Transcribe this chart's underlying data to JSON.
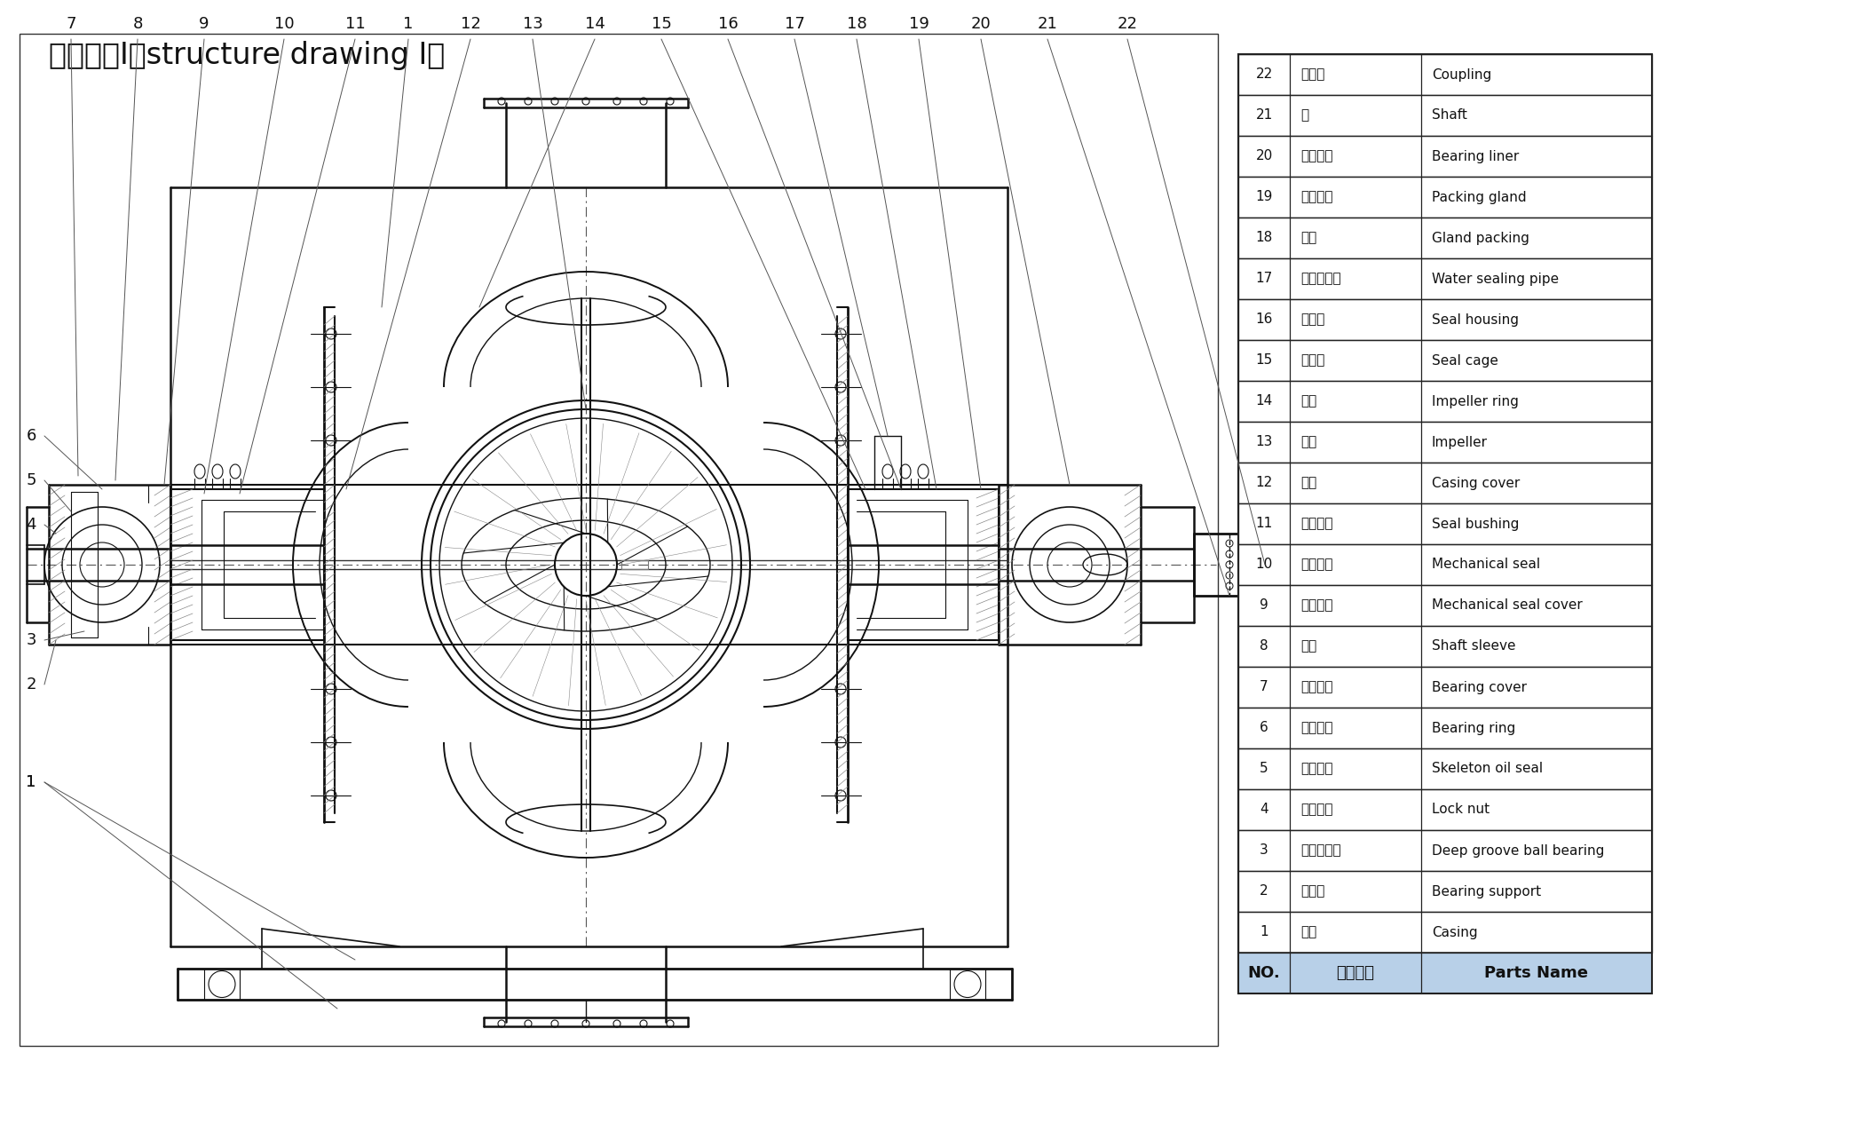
{
  "title": "结构形式I（structure drawing I）",
  "title_fontsize": 24,
  "background_color": "#ffffff",
  "table_header_bg": "#b8d0e8",
  "table_border_color": "#222222",
  "parts": [
    {
      "no": "22",
      "zh": "联轴器",
      "en": "Coupling"
    },
    {
      "no": "21",
      "zh": "轴",
      "en": "Shaft"
    },
    {
      "no": "20",
      "zh": "轴承衬圈",
      "en": "Bearing liner"
    },
    {
      "no": "19",
      "zh": "填料压盖",
      "en": "Packing gland"
    },
    {
      "no": "18",
      "zh": "填料",
      "en": "Gland packing"
    },
    {
      "no": "17",
      "zh": "水封管部件",
      "en": "Water sealing pipe"
    },
    {
      "no": "16",
      "zh": "密封体",
      "en": "Seal housing"
    },
    {
      "no": "15",
      "zh": "填料环",
      "en": "Seal cage"
    },
    {
      "no": "14",
      "zh": "口环",
      "en": "Impeller ring"
    },
    {
      "no": "13",
      "zh": "叶轮",
      "en": "Impeller"
    },
    {
      "no": "12",
      "zh": "泵盖",
      "en": "Casing cover"
    },
    {
      "no": "11",
      "zh": "密封衬套",
      "en": "Seal bushing"
    },
    {
      "no": "10",
      "zh": "机械密封",
      "en": "Mechanical seal"
    },
    {
      "no": "9",
      "zh": "机封压盖",
      "en": "Mechanical seal cover"
    },
    {
      "no": "8",
      "zh": "轴套",
      "en": "Shaft sleeve"
    },
    {
      "no": "7",
      "zh": "轴承压盖",
      "en": "Bearing cover"
    },
    {
      "no": "6",
      "zh": "轴承压环",
      "en": "Bearing ring"
    },
    {
      "no": "5",
      "zh": "骨架油封",
      "en": "Skeleton oil seal"
    },
    {
      "no": "4",
      "zh": "锁紧螺母",
      "en": "Lock nut"
    },
    {
      "no": "3",
      "zh": "深沟球轴承",
      "en": "Deep groove ball bearing"
    },
    {
      "no": "2",
      "zh": "轴承体",
      "en": "Bearing support"
    },
    {
      "no": "1",
      "zh": "泵体",
      "en": "Casing"
    }
  ],
  "header_no": "NO.",
  "header_zh": "零件名称",
  "header_en": "Parts Name",
  "lc": "#111111",
  "llc": "#555555",
  "hatch_color": "#888888"
}
